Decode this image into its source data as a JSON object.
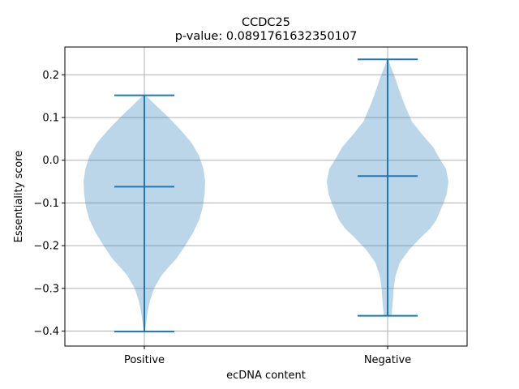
{
  "chart_data": {
    "type": "violin",
    "title": "CCDC25",
    "subtitle": "p-value: 0.0891761632350107",
    "xlabel": "ecDNA content",
    "ylabel": "Essentiality score",
    "ylim": [
      -0.435,
      0.265
    ],
    "grid": true,
    "categories": [
      "Positive",
      "Negative"
    ],
    "yticks": [
      -0.4,
      -0.3,
      -0.2,
      -0.1,
      0.0,
      0.1,
      0.2
    ],
    "ytick_labels": [
      "−0.4",
      "−0.3",
      "−0.2",
      "−0.1",
      "0.0",
      "0.1",
      "0.2"
    ],
    "colors": {
      "fill": "#1f77b4",
      "fill_opacity": 0.3,
      "lines": "#1f77b4",
      "grid": "#b0b0b0"
    },
    "violins": [
      {
        "category": "Positive",
        "min": -0.401,
        "max": 0.152,
        "mean": -0.062,
        "density": [
          [
            -0.401,
            0.0
          ],
          [
            -0.39,
            0.02
          ],
          [
            -0.37,
            0.04
          ],
          [
            -0.35,
            0.06
          ],
          [
            -0.33,
            0.09
          ],
          [
            -0.3,
            0.16
          ],
          [
            -0.27,
            0.28
          ],
          [
            -0.25,
            0.4
          ],
          [
            -0.23,
            0.53
          ],
          [
            -0.2,
            0.67
          ],
          [
            -0.17,
            0.8
          ],
          [
            -0.14,
            0.9
          ],
          [
            -0.11,
            0.96
          ],
          [
            -0.08,
            0.99
          ],
          [
            -0.05,
            1.0
          ],
          [
            -0.02,
            0.97
          ],
          [
            0.01,
            0.9
          ],
          [
            0.04,
            0.78
          ],
          [
            0.07,
            0.6
          ],
          [
            0.1,
            0.4
          ],
          [
            0.13,
            0.18
          ],
          [
            0.152,
            0.02
          ]
        ]
      },
      {
        "category": "Negative",
        "min": -0.364,
        "max": 0.236,
        "mean": -0.037,
        "density": [
          [
            -0.364,
            0.06
          ],
          [
            -0.34,
            0.08
          ],
          [
            -0.32,
            0.09
          ],
          [
            -0.3,
            0.1
          ],
          [
            -0.27,
            0.13
          ],
          [
            -0.24,
            0.2
          ],
          [
            -0.21,
            0.35
          ],
          [
            -0.18,
            0.55
          ],
          [
            -0.16,
            0.7
          ],
          [
            -0.14,
            0.8
          ],
          [
            -0.12,
            0.86
          ],
          [
            -0.1,
            0.92
          ],
          [
            -0.08,
            0.97
          ],
          [
            -0.05,
            1.0
          ],
          [
            -0.02,
            0.96
          ],
          [
            0.0,
            0.87
          ],
          [
            0.03,
            0.75
          ],
          [
            0.06,
            0.57
          ],
          [
            0.09,
            0.4
          ],
          [
            0.13,
            0.28
          ],
          [
            0.16,
            0.2
          ],
          [
            0.19,
            0.13
          ],
          [
            0.22,
            0.05
          ],
          [
            0.236,
            0.01
          ]
        ]
      }
    ]
  }
}
